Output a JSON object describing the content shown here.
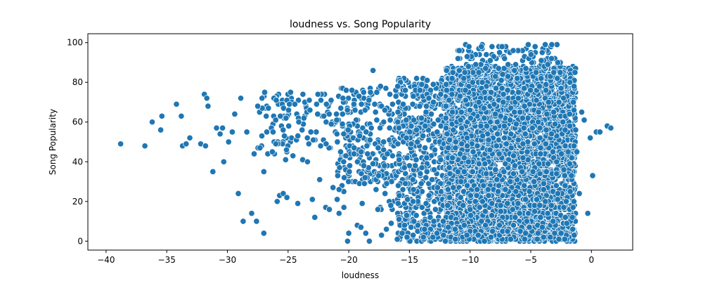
{
  "chart_data": {
    "type": "scatter",
    "title": "loudness vs. Song Popularity",
    "xlabel": "loudness",
    "ylabel": "Song Popularity",
    "xlim": [
      -41.5,
      3.4
    ],
    "ylim": [
      -4.5,
      104.5
    ],
    "xticks": [
      -40,
      -35,
      -30,
      -25,
      -20,
      -15,
      -10,
      -5,
      0
    ],
    "yticks": [
      0,
      20,
      40,
      60,
      80,
      100
    ],
    "grid": false,
    "legend": "none",
    "marker_color": "#1f77b4",
    "marker_edge": "#ffffff",
    "outliers": [
      [
        -38.8,
        49
      ],
      [
        -36.8,
        48
      ],
      [
        -36.2,
        60
      ],
      [
        -35.5,
        56
      ],
      [
        -35.4,
        63
      ],
      [
        -34.2,
        69
      ],
      [
        -33.8,
        63
      ],
      [
        -33.7,
        48
      ],
      [
        -33.4,
        49
      ],
      [
        -33.1,
        52
      ],
      [
        -32.2,
        49
      ],
      [
        -31.9,
        74
      ],
      [
        -31.8,
        48
      ],
      [
        -31.7,
        72
      ],
      [
        -31.6,
        68
      ],
      [
        -31.2,
        35
      ],
      [
        -30.9,
        57
      ],
      [
        -30.6,
        54
      ],
      [
        -30.4,
        57
      ],
      [
        -30.3,
        40
      ],
      [
        -29.9,
        50
      ],
      [
        -29.6,
        55
      ],
      [
        -29.4,
        64
      ],
      [
        -29.1,
        24
      ],
      [
        -28.9,
        72
      ],
      [
        -28.7,
        10
      ],
      [
        -28.4,
        55
      ],
      [
        -28.0,
        14
      ],
      [
        -27.8,
        44
      ],
      [
        -27.6,
        10
      ],
      [
        -27.5,
        68
      ],
      [
        -27.0,
        35
      ],
      [
        -27.0,
        4
      ],
      [
        -26.8,
        63
      ],
      [
        -26.3,
        45
      ],
      [
        -25.9,
        20
      ],
      [
        -25.7,
        23
      ],
      [
        -25.4,
        24
      ],
      [
        -25.2,
        41
      ],
      [
        -25.1,
        22
      ],
      [
        -24.6,
        43
      ],
      [
        -24.2,
        19
      ],
      [
        -23.8,
        41
      ],
      [
        -23.4,
        40
      ],
      [
        -23.0,
        21
      ],
      [
        -22.8,
        12
      ],
      [
        -22.4,
        31
      ],
      [
        -21.9,
        17
      ],
      [
        -21.6,
        16
      ],
      [
        -21.3,
        27
      ],
      [
        -20.8,
        14
      ],
      [
        -20.4,
        17
      ],
      [
        -20.1,
        0
      ],
      [
        -20.0,
        4
      ],
      [
        -19.3,
        8
      ],
      [
        -19.0,
        7
      ],
      [
        -18.6,
        4
      ],
      [
        -18.3,
        0
      ],
      [
        -18.0,
        86
      ],
      [
        -17.6,
        16
      ],
      [
        -17.3,
        3
      ],
      [
        -16.9,
        6
      ],
      [
        -16.5,
        9
      ],
      [
        -16.0,
        1
      ],
      [
        -15.6,
        4
      ],
      [
        -15.2,
        2
      ],
      [
        -0.8,
        65
      ],
      [
        -0.6,
        61
      ],
      [
        -0.3,
        14
      ],
      [
        -0.1,
        52
      ],
      [
        0.1,
        33
      ],
      [
        0.4,
        55
      ],
      [
        0.7,
        55
      ],
      [
        1.3,
        58
      ],
      [
        1.6,
        57
      ],
      [
        -1.3,
        56
      ],
      [
        -1.2,
        45
      ],
      [
        -1.0,
        24
      ]
    ],
    "clusters": [
      {
        "x_range": [
          -27.5,
          -21
        ],
        "y_range": [
          44,
          75
        ],
        "count": 110
      },
      {
        "x_range": [
          -21,
          -16
        ],
        "y_range": [
          30,
          78
        ],
        "count": 200
      },
      {
        "x_range": [
          -21,
          -16
        ],
        "y_range": [
          15,
          48
        ],
        "count": 55
      },
      {
        "x_range": [
          -16,
          -12
        ],
        "y_range": [
          0,
          82
        ],
        "count": 500
      },
      {
        "x_range": [
          -12,
          -1.3
        ],
        "y_range": [
          0,
          88
        ],
        "count": 3800
      },
      {
        "x_range": [
          -11,
          -2.5
        ],
        "y_range": [
          82,
          99
        ],
        "count": 140
      },
      {
        "x_range": [
          -14,
          -2
        ],
        "y_range": [
          0,
          10
        ],
        "count": 300
      }
    ]
  }
}
